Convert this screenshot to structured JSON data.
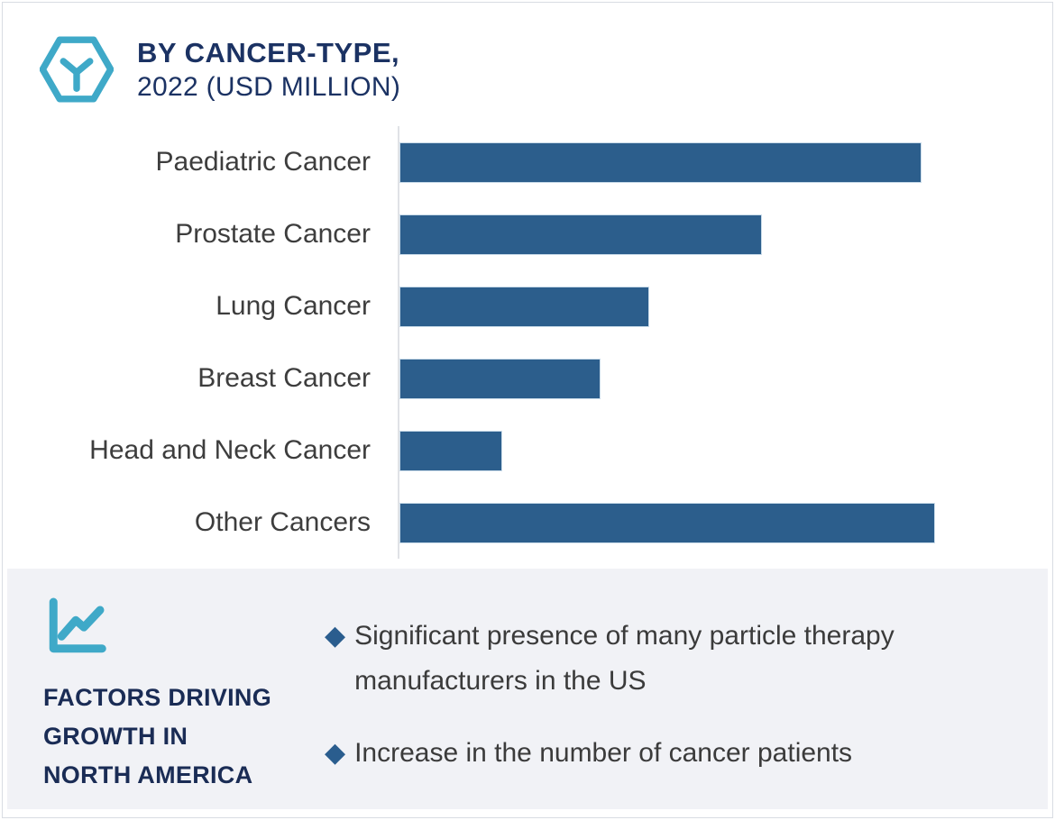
{
  "header": {
    "icon": "hexagon-y-logo-icon",
    "title_line1": "BY CANCER-TYPE,",
    "title_line2": "2022 (USD MILLION)"
  },
  "chart_data": {
    "type": "bar",
    "orientation": "horizontal",
    "title": "BY CANCER-TYPE, 2022 (USD MILLION)",
    "unit": "USD Million",
    "categories": [
      "Paediatric Cancer",
      "Prostate Cancer",
      "Lung Cancer",
      "Breast Cancer",
      "Head and Neck Cancer",
      "Other Cancers"
    ],
    "values_pct_of_max": [
      97.5,
      67.7,
      46.6,
      37.5,
      19.2,
      100
    ],
    "value_axis_labeled": false,
    "grid": false,
    "legend": false,
    "bar_color": "#2c5e8c",
    "axis_line_color": "#e0e2e6"
  },
  "factors_panel": {
    "icon": "line-chart-icon",
    "heading_lines": [
      "FACTORS DRIVING",
      "GROWTH IN",
      "NORTH AMERICA"
    ],
    "bullet_marker": "◆",
    "bullets": [
      "Significant presence of many particle therapy manufacturers  in the US",
      "Increase in the number of cancer patients"
    ]
  },
  "colors": {
    "bar_blue": "#2c5e8c",
    "navy_text": "#1b3263",
    "teal_icon": "#3fa9c8",
    "panel_bg": "#f1f2f6",
    "body_text": "#3b3b3b",
    "bullet_diamond": "#2a5d8e",
    "card_border": "#d9dce3"
  }
}
